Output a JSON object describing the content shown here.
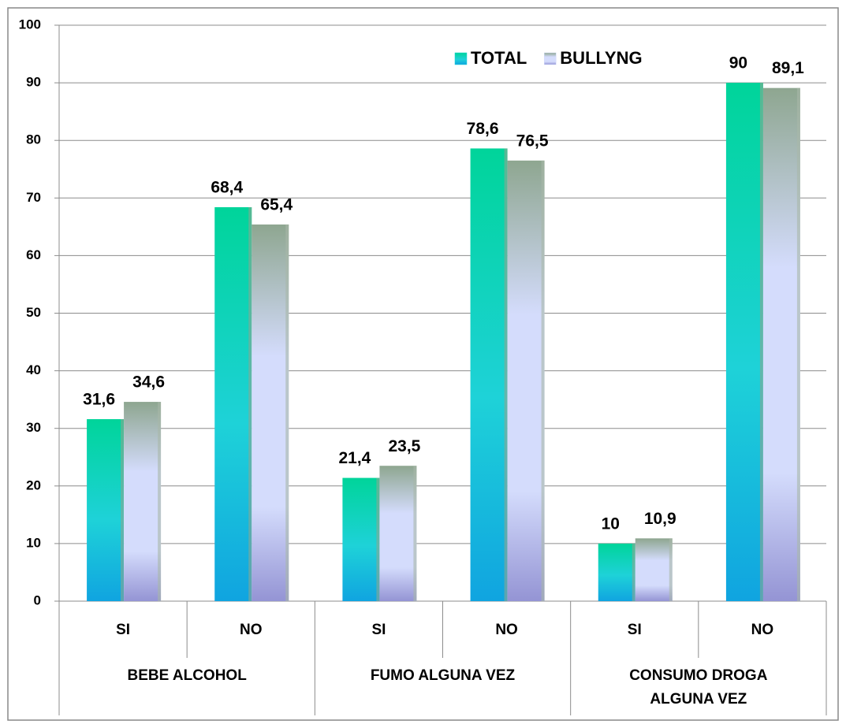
{
  "chart_data": {
    "type": "bar",
    "categories": [
      "SI",
      "NO",
      "SI",
      "NO",
      "SI",
      "NO"
    ],
    "groups": [
      "BEBE ALCOHOL",
      "FUMO ALGUNA VEZ",
      "CONSUMO DROGA ALGUNA VEZ"
    ],
    "series": [
      {
        "name": "TOTAL",
        "color": "#1ed2d8",
        "values": [
          31.6,
          68.4,
          21.4,
          78.6,
          10,
          90
        ],
        "value_labels": [
          "31,6",
          "68,4",
          "21,4",
          "78,6",
          "10",
          "90"
        ]
      },
      {
        "name": "BULLYNG",
        "color": "#d4dcfc",
        "values": [
          34.6,
          65.4,
          23.5,
          76.5,
          10.9,
          89.1
        ],
        "value_labels": [
          "34,6",
          "65,4",
          "23,5",
          "76,5",
          "10,9",
          "89,1"
        ]
      }
    ],
    "ylim": [
      0,
      100
    ],
    "yticks": [
      0,
      10,
      20,
      30,
      40,
      50,
      60,
      70,
      80,
      90,
      100
    ],
    "grid": true
  }
}
